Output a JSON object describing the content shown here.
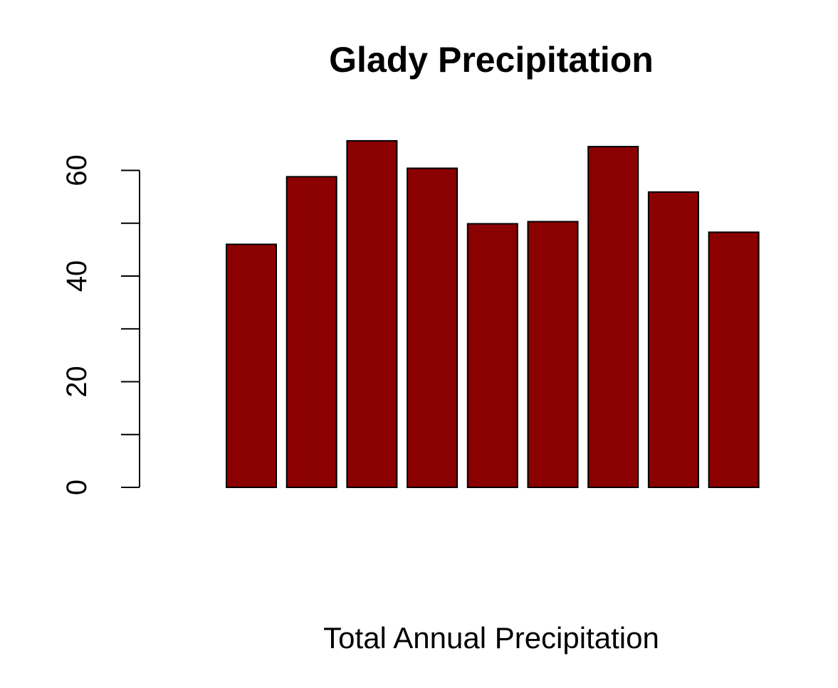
{
  "chart_data": {
    "type": "bar",
    "title": "Glady Precipitation",
    "xlabel": "Total Annual Precipitation",
    "ylabel": "",
    "values": [
      46,
      58.8,
      65.6,
      60.4,
      49.9,
      50.3,
      64.5,
      55.9,
      48.3
    ],
    "ylim": [
      0,
      70
    ],
    "yticks": [
      0,
      20,
      40,
      60
    ],
    "yminor_ticks": [
      10,
      30,
      50
    ],
    "grid": false,
    "legend": "none",
    "colors": {
      "bar_fill": "#8B0000",
      "bar_stroke": "#000000",
      "axis": "#000000"
    }
  }
}
